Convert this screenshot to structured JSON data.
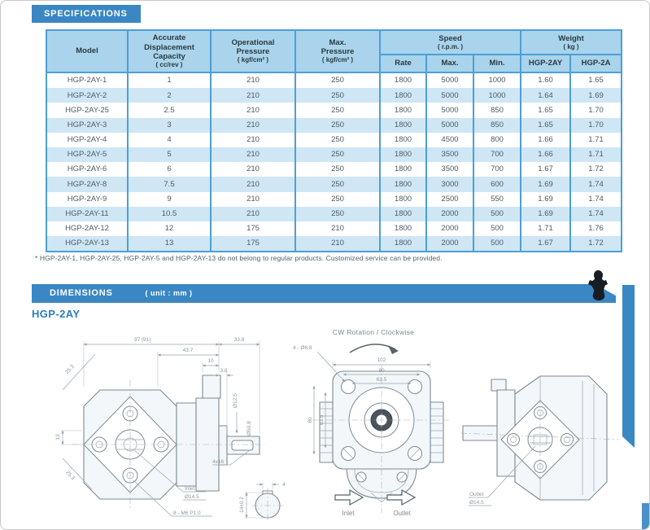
{
  "sections": {
    "specifications_title": "SPECIFICATIONS",
    "dimensions_title": "DIMENSIONS",
    "dimensions_unit": "( unit : mm )",
    "model_heading": "HGP-2AY",
    "footnote": "* HGP-2AY-1, HGP-2AY-25, HGP-2AY-5 and HGP-2AY-13 do not belong to regular products. Customized service can be provided."
  },
  "colors": {
    "banner_blue": "#3a87c4",
    "table_border_blue": "#4d9fd6",
    "header_bg": "#a9d4ec",
    "alt_row_bg": "#cfe6f5",
    "heading_blue": "#2d7dbf"
  },
  "table": {
    "column_keys": [
      "model",
      "cap",
      "op",
      "maxp",
      "rate",
      "smax",
      "smin",
      "w2ay",
      "w2a"
    ],
    "headers": {
      "model": "Model",
      "capacity": "Accurate\nDisplacement\nCapacity",
      "capacity_unit": "( cc/rev )",
      "op_pressure": "Operational\nPressure",
      "op_pressure_unit": "( kgf/cm² )",
      "max_pressure": "Max.\nPressure",
      "max_pressure_unit": "( kgf/cm² )",
      "speed": "Speed",
      "speed_unit": "( r.p.m. )",
      "weight": "Weight",
      "weight_unit": "( kg )",
      "rate": "Rate",
      "max": "Max.",
      "min": "Min.",
      "hgp2ay": "HGP-2AY",
      "hgp2a": "HGP-2A"
    },
    "rows": [
      {
        "model": "HGP-2AY-1",
        "cap": "1",
        "op": "210",
        "maxp": "250",
        "rate": "1800",
        "smax": "5000",
        "smin": "1000",
        "w2ay": "1.60",
        "w2a": "1.65"
      },
      {
        "model": "HGP-2AY-2",
        "cap": "2",
        "op": "210",
        "maxp": "250",
        "rate": "1800",
        "smax": "5000",
        "smin": "1000",
        "w2ay": "1.64",
        "w2a": "1.69"
      },
      {
        "model": "HGP-2AY-25",
        "cap": "2.5",
        "op": "210",
        "maxp": "250",
        "rate": "1800",
        "smax": "5000",
        "smin": "850",
        "w2ay": "1.65",
        "w2a": "1.70"
      },
      {
        "model": "HGP-2AY-3",
        "cap": "3",
        "op": "210",
        "maxp": "250",
        "rate": "1800",
        "smax": "5000",
        "smin": "850",
        "w2ay": "1.65",
        "w2a": "1.70"
      },
      {
        "model": "HGP-2AY-4",
        "cap": "4",
        "op": "210",
        "maxp": "250",
        "rate": "1800",
        "smax": "4500",
        "smin": "800",
        "w2ay": "1.66",
        "w2a": "1.71"
      },
      {
        "model": "HGP-2AY-5",
        "cap": "5",
        "op": "210",
        "maxp": "250",
        "rate": "1800",
        "smax": "3500",
        "smin": "700",
        "w2ay": "1.66",
        "w2a": "1.71"
      },
      {
        "model": "HGP-2AY-6",
        "cap": "6",
        "op": "210",
        "maxp": "250",
        "rate": "1800",
        "smax": "3500",
        "smin": "700",
        "w2ay": "1.67",
        "w2a": "1.72"
      },
      {
        "model": "HGP-2AY-8",
        "cap": "7.5",
        "op": "210",
        "maxp": "250",
        "rate": "1800",
        "smax": "3000",
        "smin": "600",
        "w2ay": "1.69",
        "w2a": "1.74"
      },
      {
        "model": "HGP-2AY-9",
        "cap": "9",
        "op": "210",
        "maxp": "250",
        "rate": "1800",
        "smax": "2500",
        "smin": "550",
        "w2ay": "1.69",
        "w2a": "1.74"
      },
      {
        "model": "HGP-2AY-11",
        "cap": "10.5",
        "op": "210",
        "maxp": "250",
        "rate": "1800",
        "smax": "2000",
        "smin": "500",
        "w2ay": "1.69",
        "w2a": "1.74"
      },
      {
        "model": "HGP-2AY-12",
        "cap": "12",
        "op": "175",
        "maxp": "210",
        "rate": "1800",
        "smax": "2000",
        "smin": "500",
        "w2ay": "1.71",
        "w2a": "1.76"
      },
      {
        "model": "HGP-2AY-13",
        "cap": "13",
        "op": "175",
        "maxp": "210",
        "rate": "1800",
        "smax": "2000",
        "smin": "500",
        "w2ay": "1.67",
        "w2a": "1.72"
      }
    ]
  },
  "drawings": {
    "cw_rotation": "CW Rotation / Clockwise",
    "inlet": "Inlet",
    "outlet": "Outlet",
    "side_view": {
      "overall_len": "97 [91]",
      "shaft_len": "33.8",
      "body_len": "43.7",
      "port_offset": "10",
      "port_width": "3.8",
      "shaft_dia": "Ø12.5",
      "pilot_dia": "Ø50.8",
      "corner_top": "25.3",
      "corner_bottom": "25.3",
      "side_offset": "13",
      "key_size": "4x16",
      "inlet_port": "Inlet",
      "inlet_dia": "Ø14.5",
      "mount_holes": "8 - M6 P1.0"
    },
    "front_view": {
      "width": "102",
      "bolt_span_h": "80",
      "port_span_h": "63.5",
      "bolt_span_v": "80",
      "port_span_v": "63.5",
      "corner_holes": "4 - Ø6.8"
    },
    "key_detail": {
      "key_width": "4",
      "shaft_section": "14±0.2"
    },
    "rear_view": {
      "outlet_port": "Outlet",
      "outlet_dia": "Ø14.5"
    }
  }
}
